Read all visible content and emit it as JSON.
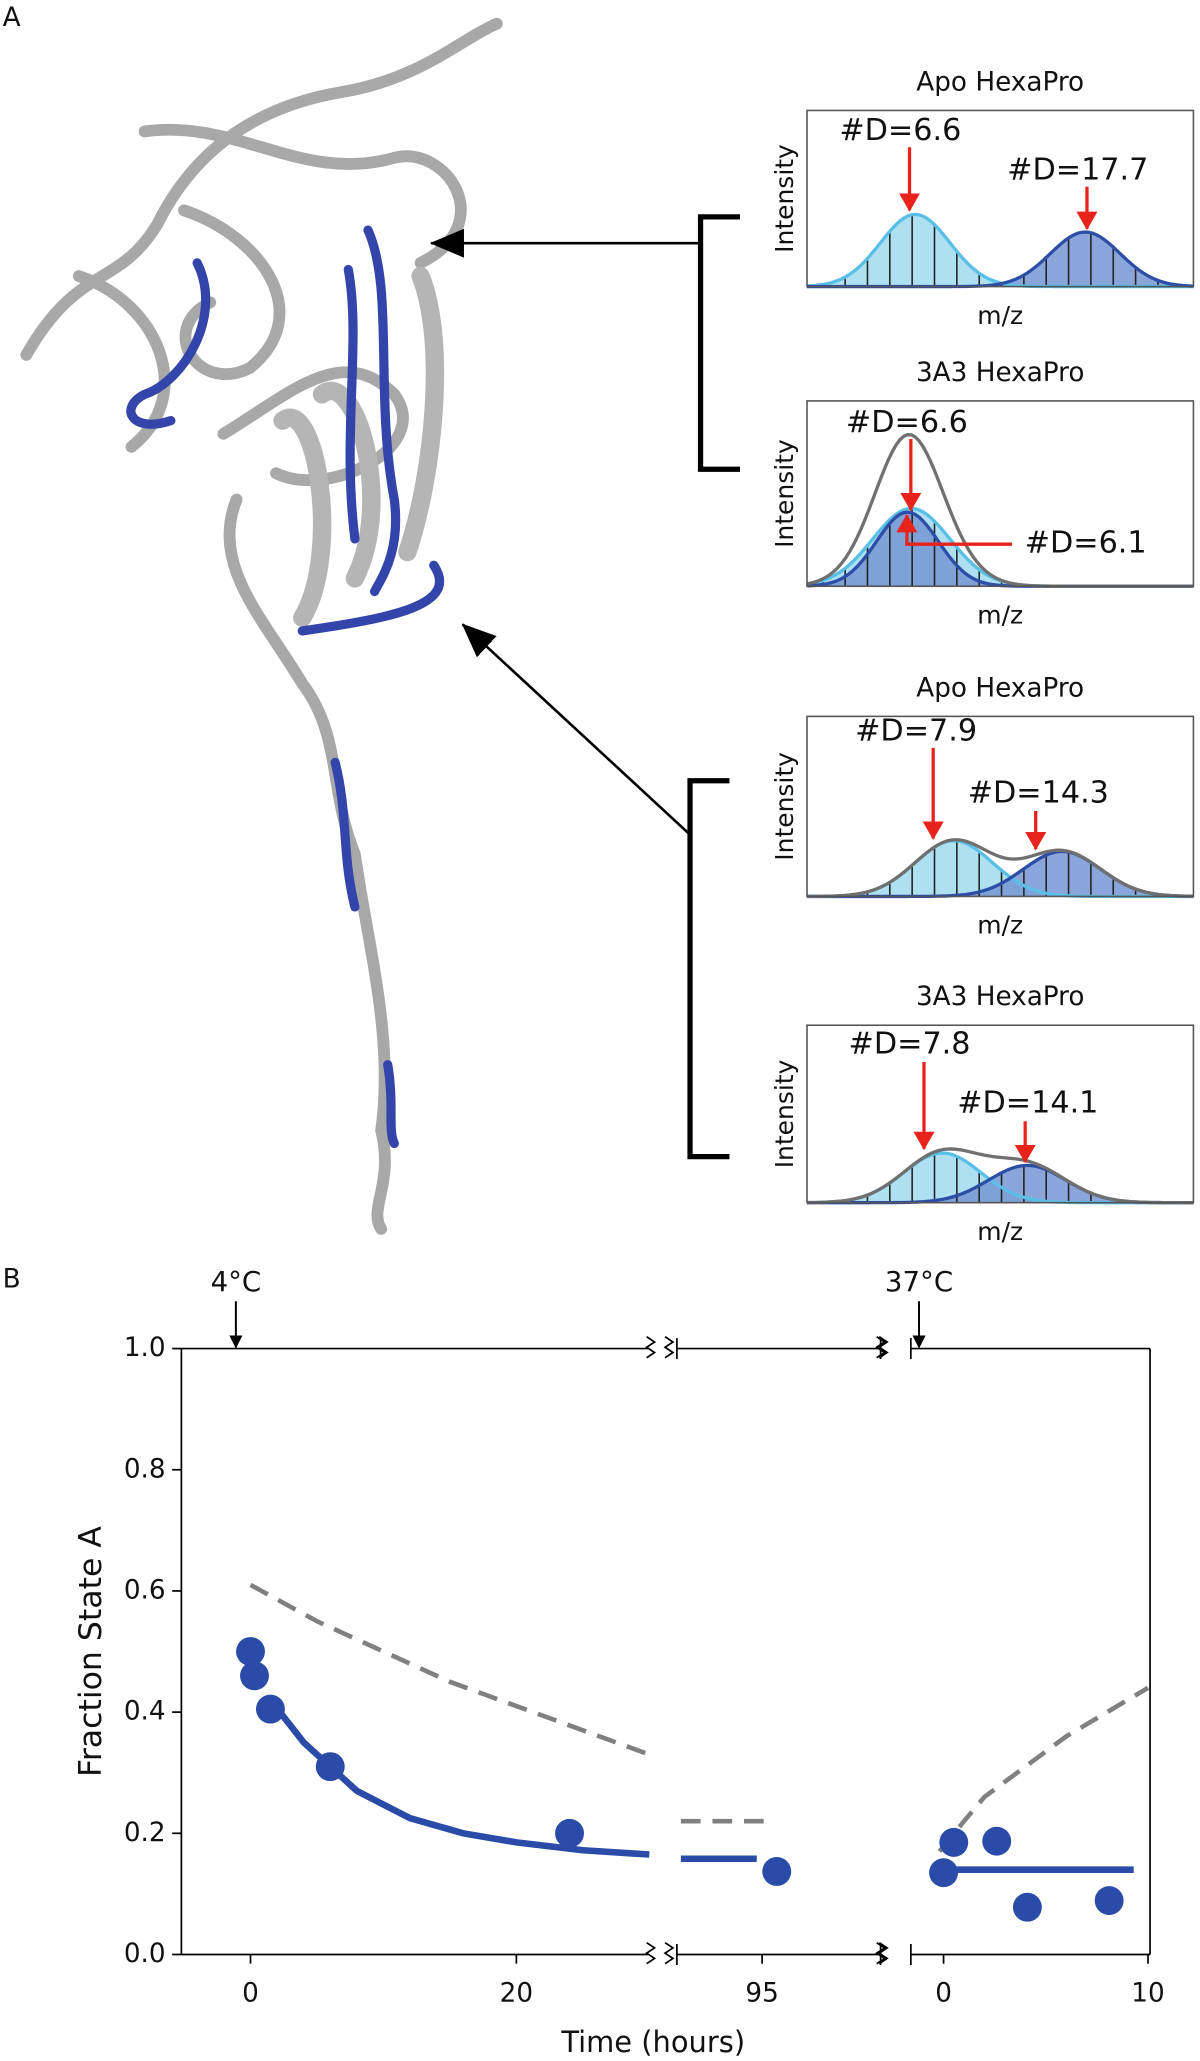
{
  "panel_a": {
    "label": "A",
    "spectra": [
      {
        "title": "Apo HexaPro",
        "y_label": "Intensity",
        "x_label": "m/z",
        "peaks": [
          "#D=6.6",
          "#D=17.7"
        ]
      },
      {
        "title": "3A3 HexaPro",
        "y_label": "Intensity",
        "x_label": "m/z",
        "peaks": [
          "#D=6.6",
          "#D=6.1"
        ]
      },
      {
        "title": "Apo HexaPro",
        "y_label": "Intensity",
        "x_label": "m/z",
        "peaks": [
          "#D=7.9",
          "#D=14.3"
        ]
      },
      {
        "title": "3A3 HexaPro",
        "y_label": "Intensity",
        "x_label": "m/z",
        "peaks": [
          "#D=7.8",
          "#D=14.1"
        ]
      }
    ]
  },
  "chart_data": {
    "type": "broken-axis",
    "panel_label": "B",
    "x_label": "Time (hours)",
    "y_label": "Fraction State A",
    "ylim": [
      0,
      1
    ],
    "yticks": [
      {
        "value": 0,
        "label": "0.0"
      },
      0.2,
      0.4,
      0.6,
      0.8,
      {
        "value": 1,
        "label": "1.0"
      }
    ],
    "segments": [
      {
        "annotation": {
          "text": "4°C",
          "x": -1.1
        },
        "xlim": [
          -5.2,
          29.9
        ],
        "xticks": [
          0,
          20
        ],
        "series": [
          {
            "kind": "dashed",
            "color": "#808080",
            "x": [
              0,
              5,
              10,
              15,
              20,
              25,
              30
            ],
            "values": [
              0.61,
              0.55,
              0.5,
              0.45,
              0.41,
              0.37,
              0.33
            ]
          },
          {
            "kind": "line",
            "color": "#2a4ca8",
            "x": [
              1.5,
              4,
              8,
              12,
              16,
              20,
              25,
              30
            ],
            "values": [
              0.42,
              0.35,
              0.27,
              0.225,
              0.2,
              0.185,
              0.172,
              0.165
            ]
          },
          {
            "kind": "points",
            "color": "#2a4ca8",
            "x": [
              0,
              0.3,
              1.5,
              6,
              24
            ],
            "values": [
              0.5,
              0.46,
              0.405,
              0.31,
              0.2
            ]
          }
        ]
      },
      {
        "xlim": [
          88.6,
          103.9
        ],
        "xticks": [
          95
        ],
        "series": [
          {
            "kind": "dashed",
            "color": "#808080",
            "x": [
              88.9,
              96
            ],
            "values": [
              0.22,
              0.22
            ]
          },
          {
            "kind": "line",
            "color": "#2a4ca8",
            "x": [
              88.9,
              94.6
            ],
            "values": [
              0.158,
              0.158
            ]
          },
          {
            "kind": "points",
            "color": "#2a4ca8",
            "x": [
              96.1
            ],
            "values": [
              0.137
            ]
          }
        ]
      },
      {
        "annotation": {
          "text": "37°C",
          "x": -1.2
        },
        "xlim": [
          -1.6,
          10.1
        ],
        "xticks": [
          0,
          10
        ],
        "series": [
          {
            "kind": "dashed",
            "color": "#808080",
            "x": [
              -0.2,
              1,
              2,
              4,
              6,
              8,
              10
            ],
            "values": [
              0.17,
              0.22,
              0.26,
              0.31,
              0.36,
              0.4,
              0.44
            ]
          },
          {
            "kind": "line",
            "color": "#2a4ca8",
            "x": [
              -0.1,
              9.3
            ],
            "values": [
              0.14,
              0.14
            ]
          },
          {
            "kind": "points",
            "color": "#2a4ca8",
            "x": [
              0,
              0.5,
              2.6,
              4.1,
              8.1
            ],
            "values": [
              0.135,
              0.185,
              0.187,
              0.078,
              0.089
            ]
          }
        ]
      }
    ]
  }
}
